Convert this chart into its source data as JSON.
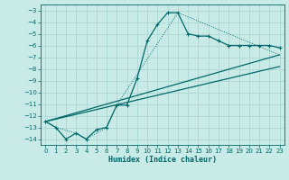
{
  "xlabel": "Humidex (Indice chaleur)",
  "xlim": [
    -0.5,
    23.5
  ],
  "ylim": [
    -14.5,
    -2.5
  ],
  "yticks": [
    -3,
    -4,
    -5,
    -6,
    -7,
    -8,
    -9,
    -10,
    -11,
    -12,
    -13,
    -14
  ],
  "xticks": [
    0,
    1,
    2,
    3,
    4,
    5,
    6,
    7,
    8,
    9,
    10,
    11,
    12,
    13,
    14,
    15,
    16,
    17,
    18,
    19,
    20,
    21,
    22,
    23
  ],
  "bg_color": "#c8ebe8",
  "grid_color": "#b0d8d5",
  "line_color": "#006868",
  "curve_main_x": [
    0,
    1,
    2,
    3,
    4,
    5,
    6,
    7,
    8,
    9,
    10,
    11,
    12,
    13,
    14,
    15,
    16,
    17,
    18,
    19,
    20,
    21,
    22,
    23
  ],
  "curve_main_y": [
    -12.5,
    -13.0,
    -14.0,
    -13.5,
    -14.0,
    -13.2,
    -13.0,
    -11.1,
    -11.1,
    -8.8,
    -5.6,
    -4.2,
    -3.2,
    -3.2,
    -5.0,
    -5.2,
    -5.2,
    -5.6,
    -6.0,
    -6.0,
    -6.0,
    -6.0,
    -6.0,
    -6.2
  ],
  "line1_x": [
    0,
    23
  ],
  "line1_y": [
    -12.5,
    -6.8
  ],
  "line2_x": [
    0,
    23
  ],
  "line2_y": [
    -12.5,
    -7.8
  ],
  "dotted_x": [
    0,
    1,
    3,
    4,
    6,
    7,
    13,
    23
  ],
  "dotted_y": [
    -12.5,
    -13.0,
    -13.5,
    -14.0,
    -13.0,
    -11.1,
    -3.2,
    -6.8
  ]
}
